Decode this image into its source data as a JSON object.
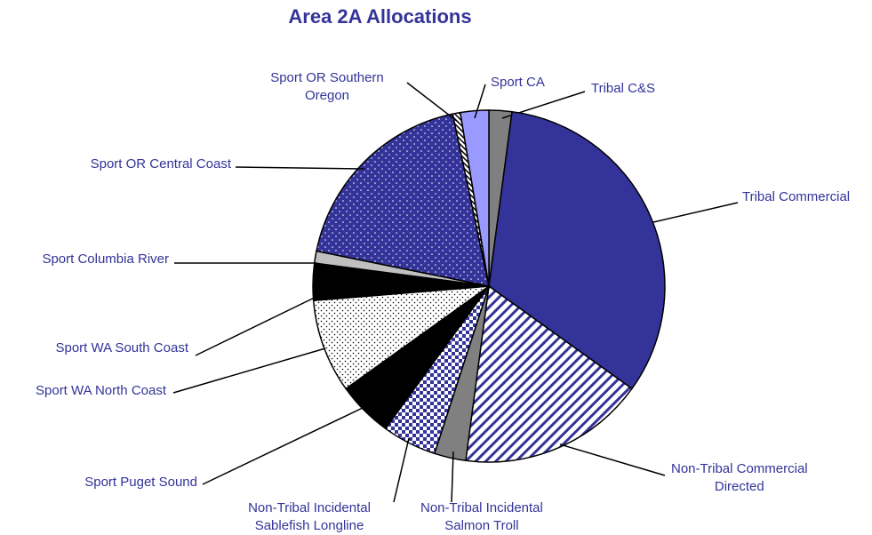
{
  "chart_data": {
    "type": "pie",
    "title": "Area 2A Allocations",
    "categories": [
      "Tribal C&S",
      "Tribal Commercial",
      "Non-Tribal Commercial\nDirected",
      "Non-Tribal Incidental\nSalmon Troll",
      "Non-Tribal Incidental\nSablefish Longline",
      "Sport Puget Sound",
      "Sport WA North Coast",
      "Sport WA South Coast",
      "Sport Columbia River",
      "Sport OR Central Coast",
      "Sport OR Southern\nOregon",
      "Sport CA"
    ],
    "values": [
      2.1,
      32.8,
      17.2,
      2.9,
      5.0,
      5.1,
      8.6,
      3.4,
      1.1,
      18.5,
      0.7,
      2.6
    ],
    "colors": [
      "#808080",
      "#333399",
      "#333399",
      "#808080",
      "#333399",
      "#000000",
      "#000000",
      "#000000",
      "#c0c0c0",
      "#333399",
      "#ffffff",
      "#9999ff"
    ]
  }
}
